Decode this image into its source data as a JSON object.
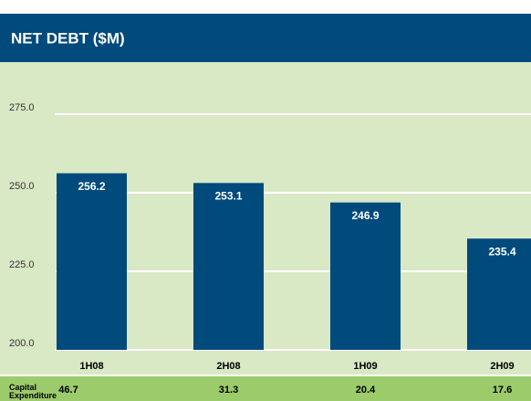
{
  "chart_data": {
    "type": "bar",
    "title": "NET DEBT ($M)",
    "categories": [
      "1H08",
      "2H08",
      "1H09",
      "2H09"
    ],
    "values": [
      256.2,
      253.1,
      246.9,
      235.4
    ],
    "color": "#004a7c",
    "ylim": [
      200,
      290
    ],
    "yticks": [
      {
        "value": 200,
        "label": "200.0"
      },
      {
        "value": 225,
        "label": "225.0"
      },
      {
        "value": 250,
        "label": "250.0"
      },
      {
        "value": 275,
        "label": "275.0"
      }
    ],
    "grid": true
  },
  "table": {
    "label": "Capital Expenditure",
    "values": [
      "46.7",
      "31.3",
      "20.4",
      "17.6"
    ]
  }
}
